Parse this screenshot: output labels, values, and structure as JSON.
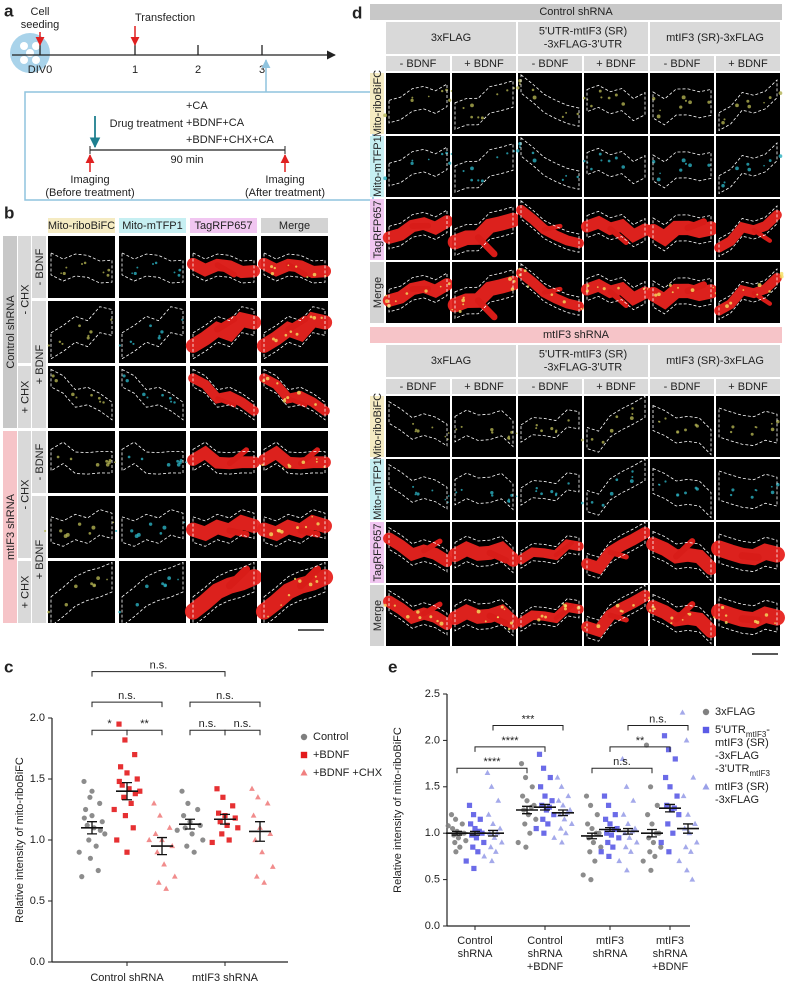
{
  "panel_a": {
    "label": "a",
    "events": [
      [
        "Cell",
        "seeding"
      ],
      [
        "Transfection"
      ]
    ],
    "days": [
      "DIV0",
      1,
      2,
      3
    ],
    "drug": "Drug treatment",
    "treatments": [
      "+CA",
      "+BDNF+CA",
      "+BDNF+CHX+CA"
    ],
    "duration": "90 min",
    "imaging": [
      [
        "Imaging",
        "(Before treatment)"
      ],
      [
        "Imaging",
        "(After treatment)"
      ]
    ]
  },
  "panel_b": {
    "label": "b",
    "columns": [
      "Mito-riboBiFC",
      "Mito-mTFP1",
      "TagRFP657",
      "Merge"
    ],
    "groups": [
      {
        "name": "Control shRNA",
        "chx": [
          "- CHX",
          "+ CHX"
        ],
        "bdnf": [
          "- BDNF",
          "+ BDNF"
        ]
      },
      {
        "name": "mtIF3 shRNA",
        "chx": [
          "- CHX",
          "+ CHX"
        ],
        "bdnf": [
          "- BDNF",
          "+ BDNF"
        ]
      }
    ]
  },
  "panel_d": {
    "label": "d",
    "sections": [
      {
        "title": "Control shRNA",
        "constructs": [
          [
            "3xFLAG"
          ],
          [
            "5'UTR-mtIF3 (SR)",
            "-3xFLAG-3'UTR"
          ],
          [
            "mtIF3 (SR)-3xFLAG"
          ]
        ],
        "conditions": [
          "- BDNF",
          "+ BDNF",
          "- BDNF",
          "+ BDNF",
          "- BDNF",
          "+ BDNF"
        ],
        "rows": [
          "Mito-riboBiFC",
          "Mito-mTFP1",
          "TagRFP657",
          "Merge"
        ]
      },
      {
        "title": "mtIF3 shRNA",
        "constructs": [
          [
            "3xFLAG"
          ],
          [
            "5'UTR-mtIF3 (SR)",
            "-3xFLAG-3'UTR"
          ],
          [
            "mtIF3 (SR)-3xFLAG"
          ]
        ],
        "conditions": [
          "- BDNF",
          "+ BDNF",
          "- BDNF",
          "+ BDNF",
          "- BDNF",
          "+ BDNF"
        ],
        "rows": [
          "Mito-riboBiFC",
          "Mito-mTFP1",
          "TagRFP657",
          "Merge"
        ]
      }
    ]
  },
  "chart_data": [
    {
      "type": "dot",
      "label": "c",
      "y_label": "Relative intensity of mito-riboBiFC",
      "categories": [
        [
          "Control shRNA"
        ],
        [
          "mtIF3 shRNA"
        ]
      ],
      "ylim": [
        0,
        2
      ],
      "yticks": [
        {
          "value": 0,
          "label": "0.0"
        },
        0.5,
        {
          "value": 1,
          "label": "1.0"
        },
        1.5,
        {
          "value": 2,
          "label": "2.0"
        }
      ],
      "series": [
        {
          "name": [
            [
              "Control"
            ]
          ],
          "color": "#7f7f7f",
          "marker": "circle",
          "values": [
            1.1,
            1.13
          ],
          "errors": [
            0.05,
            0.04
          ],
          "points": [
            [
              1.48,
              1.35,
              1.3,
              1.25,
              1.2,
              1.15,
              1.12,
              1.1,
              1.05,
              1.0,
              0.95,
              0.9,
              0.85,
              0.75,
              0.7,
              1.4,
              1.08,
              1.18
            ],
            [
              1.4,
              1.3,
              1.25,
              1.2,
              1.15,
              1.12,
              1.1,
              1.05,
              1.0,
              0.95,
              0.9,
              1.08
            ]
          ]
        },
        {
          "name": [
            [
              "+BDNF"
            ]
          ],
          "color": "#e31a1c",
          "marker": "square",
          "values": [
            1.4,
            1.17
          ],
          "errors": [
            0.07,
            0.04
          ],
          "points": [
            [
              1.95,
              1.82,
              1.7,
              1.6,
              1.55,
              1.5,
              1.45,
              1.42,
              1.4,
              1.35,
              1.3,
              1.25,
              1.2,
              1.1,
              1.0,
              0.9,
              1.38,
              1.48
            ],
            [
              1.42,
              1.35,
              1.28,
              1.22,
              1.2,
              1.18,
              1.15,
              1.12,
              1.1,
              1.05,
              1.0,
              0.98
            ]
          ]
        },
        {
          "name": [
            [
              "+BDNF +CHX"
            ]
          ],
          "color": "#f08080",
          "marker": "triangle",
          "values": [
            0.95,
            1.07
          ],
          "errors": [
            0.07,
            0.08
          ],
          "points": [
            [
              1.3,
              1.2,
              1.1,
              1.05,
              1.0,
              0.95,
              0.9,
              0.8,
              0.7,
              0.65,
              0.6,
              1.0
            ],
            [
              1.42,
              1.35,
              1.3,
              1.2,
              1.1,
              1.05,
              1.0,
              0.9,
              0.78,
              0.7,
              0.65
            ]
          ]
        }
      ],
      "significance": [
        "n.s.",
        "n.s.",
        "*",
        "**",
        "n.s.",
        "n.s.",
        "n.s."
      ]
    },
    {
      "type": "dot",
      "label": "e",
      "y_label": "Relative intensity of mito-riboBiFC",
      "categories": [
        [
          "Control",
          "shRNA"
        ],
        [
          "Control",
          "shRNA",
          "+BDNF"
        ],
        [
          "mtIF3",
          "shRNA"
        ],
        [
          "mtIF3",
          "shRNA",
          "+BDNF"
        ]
      ],
      "ylim": [
        0,
        2.5
      ],
      "yticks": [
        {
          "value": 0,
          "label": "0.0"
        },
        0.5,
        {
          "value": 1,
          "label": "1.0"
        },
        1.5,
        {
          "value": 2,
          "label": "2.0"
        },
        2.5
      ],
      "series": [
        {
          "name": [
            [
              "3xFLAG"
            ]
          ],
          "color": "#808080",
          "marker": "circle",
          "values": [
            1.0,
            1.25,
            0.97,
            1.0
          ],
          "errors": [
            0.02,
            0.04,
            0.03,
            0.04
          ],
          "points": [
            [
              1.2,
              1.15,
              1.1,
              1.05,
              1.02,
              1.0,
              0.98,
              0.95,
              0.92,
              0.9,
              0.85,
              1.08,
              0.8,
              1.0
            ],
            [
              1.75,
              1.6,
              1.5,
              1.4,
              1.35,
              1.3,
              1.25,
              1.2,
              1.15,
              1.1,
              1.0,
              0.9,
              0.85,
              1.28
            ],
            [
              1.4,
              1.3,
              1.2,
              1.1,
              1.05,
              1.0,
              0.95,
              0.9,
              0.85,
              0.8,
              0.7,
              0.55,
              0.5,
              1.0
            ],
            [
              1.95,
              1.5,
              1.3,
              1.2,
              1.1,
              1.0,
              0.95,
              0.9,
              0.85,
              0.8,
              0.75,
              0.7,
              0.6,
              1.0
            ]
          ]
        },
        {
          "name": [
            [
              "5'UTR",
              "mtIF3",
              "-"
            ],
            [
              "mtIF3 (SR)"
            ],
            [
              "-3xFLAG"
            ],
            [
              "-3'UTR",
              "mtIF3"
            ]
          ],
          "color": "#5b5be6",
          "marker": "square",
          "values": [
            1.0,
            1.28,
            1.04,
            1.27
          ],
          "errors": [
            0.02,
            0.03,
            0.02,
            0.04
          ],
          "points": [
            [
              1.3,
              1.2,
              1.15,
              1.1,
              1.05,
              1.0,
              0.98,
              0.95,
              0.9,
              0.85,
              0.8,
              0.7,
              0.62,
              1.02
            ],
            [
              1.85,
              1.7,
              1.6,
              1.5,
              1.4,
              1.35,
              1.3,
              1.25,
              1.2,
              1.15,
              1.1,
              1.05,
              1.0,
              1.28
            ],
            [
              1.4,
              1.3,
              1.2,
              1.15,
              1.1,
              1.05,
              1.0,
              0.98,
              0.95,
              0.9,
              0.85,
              0.8,
              0.75,
              1.04
            ],
            [
              2.05,
              1.9,
              1.8,
              1.6,
              1.5,
              1.4,
              1.3,
              1.25,
              1.2,
              1.1,
              1.0,
              0.9,
              0.8,
              1.27
            ]
          ]
        },
        {
          "name": [
            [
              "mtIF3 (SR)"
            ],
            [
              "-3xFLAG"
            ]
          ],
          "color": "#9aa0e8",
          "marker": "triangle",
          "values": [
            1.0,
            1.22,
            1.02,
            1.05
          ],
          "errors": [
            0.03,
            0.03,
            0.03,
            0.05
          ],
          "points": [
            [
              1.65,
              1.5,
              1.35,
              1.2,
              1.1,
              1.05,
              1.0,
              0.95,
              0.9,
              0.85,
              0.8,
              0.75,
              0.7,
              1.0
            ],
            [
              1.6,
              1.5,
              1.4,
              1.35,
              1.3,
              1.25,
              1.2,
              1.15,
              1.1,
              1.05,
              1.0,
              0.95,
              0.9,
              1.22
            ],
            [
              1.8,
              1.5,
              1.35,
              1.2,
              1.1,
              1.05,
              1.0,
              0.95,
              0.9,
              0.85,
              0.8,
              0.7,
              0.6,
              1.02
            ],
            [
              2.3,
              2.0,
              1.6,
              1.4,
              1.2,
              1.1,
              1.05,
              1.0,
              0.9,
              0.85,
              0.8,
              0.7,
              0.6,
              0.5
            ]
          ]
        }
      ],
      "significance": [
        "****",
        "****",
        "***",
        "n.s.",
        "**",
        "n.s."
      ]
    }
  ]
}
